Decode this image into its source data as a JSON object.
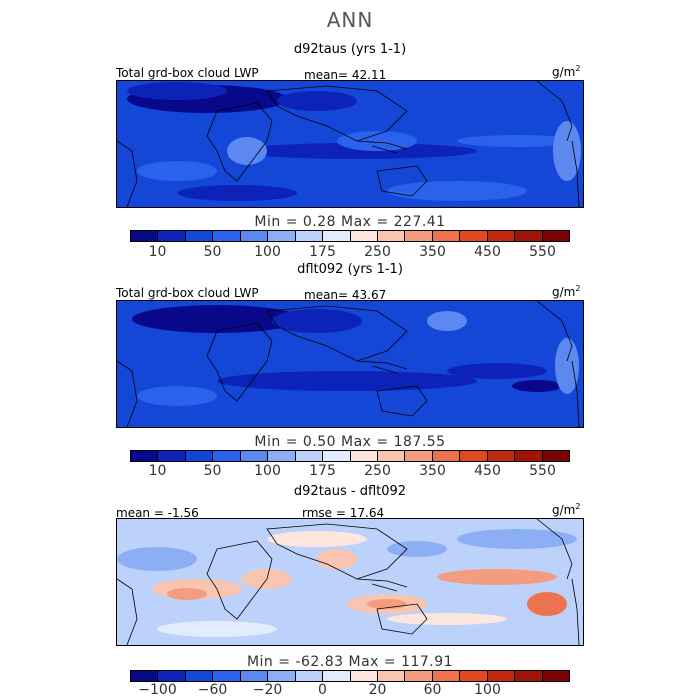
{
  "title": "ANN",
  "units": "g/m",
  "units_sup": "2",
  "colors": [
    "#08088a",
    "#0c22b8",
    "#1447d8",
    "#2a62ec",
    "#5c88f0",
    "#8caef4",
    "#bcd2fa",
    "#e2ecfc",
    "#fde6de",
    "#f9c4b0",
    "#f39c80",
    "#ec7250",
    "#e04a22",
    "#c02a10",
    "#a01408",
    "#7a0204"
  ],
  "panels": [
    {
      "title": "d92taus (yrs 1-1)",
      "left_label": "Total grd-box cloud LWP",
      "mid_label": "mean=  42.11",
      "minmax": "Min =    0.28 Max = 227.41",
      "ticks": [
        "10",
        "50",
        "100",
        "175",
        "250",
        "350",
        "450",
        "550"
      ],
      "kind": "abs"
    },
    {
      "title": "dflt092 (yrs 1-1)",
      "left_label": "Total grd-box cloud LWP",
      "mid_label": "mean=  43.67",
      "minmax": "Min =    0.50 Max = 187.55",
      "ticks": [
        "10",
        "50",
        "100",
        "175",
        "250",
        "350",
        "450",
        "550"
      ],
      "kind": "abs"
    },
    {
      "title": "d92taus - dflt092",
      "left_label": "mean =  -1.56",
      "mid_label": "rmse =  17.64",
      "minmax": "Min = -62.83 Max = 117.91",
      "ticks": [
        "−100",
        "−60",
        "−20",
        "0",
        "20",
        "60",
        "100"
      ],
      "kind": "diff"
    }
  ]
}
